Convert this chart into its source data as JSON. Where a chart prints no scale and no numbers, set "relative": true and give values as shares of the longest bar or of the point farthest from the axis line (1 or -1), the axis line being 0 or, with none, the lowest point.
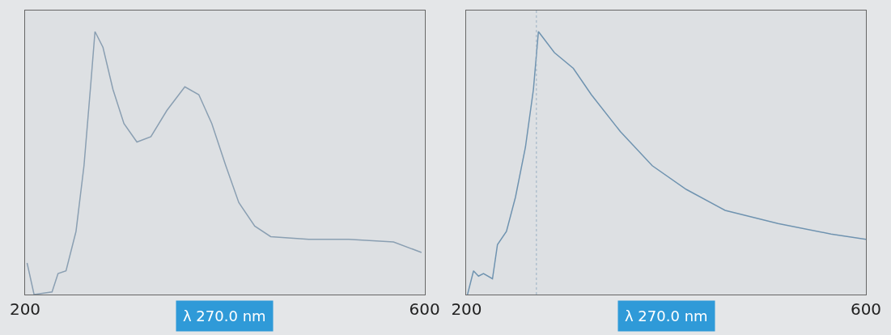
{
  "chart_data": [
    {
      "type": "line",
      "relative": true,
      "xlabel": "λ 270.0 nm",
      "xlim": [
        200,
        600
      ],
      "xticks": [
        200,
        600
      ],
      "series": [
        {
          "color": "#8a9fb2",
          "x": [
            202,
            209,
            227,
            233,
            241,
            251,
            259,
            266,
            270,
            278,
            288,
            299,
            312,
            326,
            342,
            360,
            374,
            387,
            401,
            414,
            430,
            446,
            484,
            524,
            569,
            597
          ],
          "values": [
            0.12,
            0,
            0.01,
            0.08,
            0.09,
            0.24,
            0.49,
            0.81,
            1.0,
            0.94,
            0.78,
            0.65,
            0.58,
            0.6,
            0.7,
            0.79,
            0.76,
            0.65,
            0.49,
            0.35,
            0.26,
            0.22,
            0.21,
            0.21,
            0.2,
            0.16
          ]
        }
      ]
    },
    {
      "type": "line",
      "relative": true,
      "xlabel": "λ 270.0 nm",
      "xlim": [
        200,
        600
      ],
      "xticks": [
        200,
        600
      ],
      "ref_lines": [
        {
          "axis": "x",
          "value": 270,
          "color": "#9ab0c4",
          "line_style": "dotted"
        }
      ],
      "series": [
        {
          "color": "#6f93b0",
          "x": [
            201,
            207,
            212,
            217,
            226,
            231,
            240,
            249,
            259,
            267,
            272,
            288,
            307,
            325,
            354,
            386,
            420,
            459,
            512,
            565,
            600
          ],
          "values": [
            0,
            0.09,
            0.07,
            0.08,
            0.06,
            0.19,
            0.24,
            0.37,
            0.56,
            0.78,
            1.0,
            0.92,
            0.86,
            0.76,
            0.62,
            0.49,
            0.4,
            0.32,
            0.27,
            0.23,
            0.21
          ]
        }
      ]
    }
  ]
}
